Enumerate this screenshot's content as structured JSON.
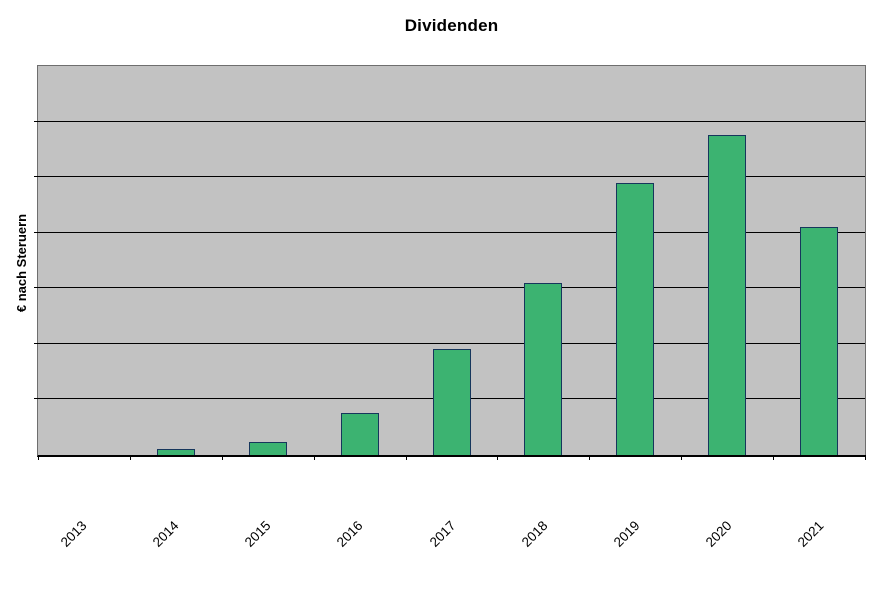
{
  "chart_data": {
    "type": "bar",
    "title": "Dividenden",
    "xlabel": "",
    "ylabel": "€ nach Steruern",
    "categories": [
      "2013",
      "2014",
      "2015",
      "2016",
      "2017",
      "2018",
      "2019",
      "2020",
      "2021"
    ],
    "values": [
      0,
      0.1,
      0.24,
      0.75,
      1.9,
      3.1,
      4.9,
      5.75,
      4.1
    ],
    "value_note": "y-axis has no numeric tick labels; values estimated in gridline units",
    "ylim": [
      0,
      7
    ],
    "y_gridline_divisions": 7,
    "grid": true,
    "legend": false,
    "x_tick_marks": 10,
    "colors": {
      "bar_fill": "#3cb371",
      "bar_border": "#16365c",
      "plot_background": "#c2c2c2",
      "gridline": "#000000",
      "plot_border": "#6e6e6e",
      "axis_line": "#000000",
      "text": "#000000",
      "page_background": "#ffffff"
    }
  }
}
